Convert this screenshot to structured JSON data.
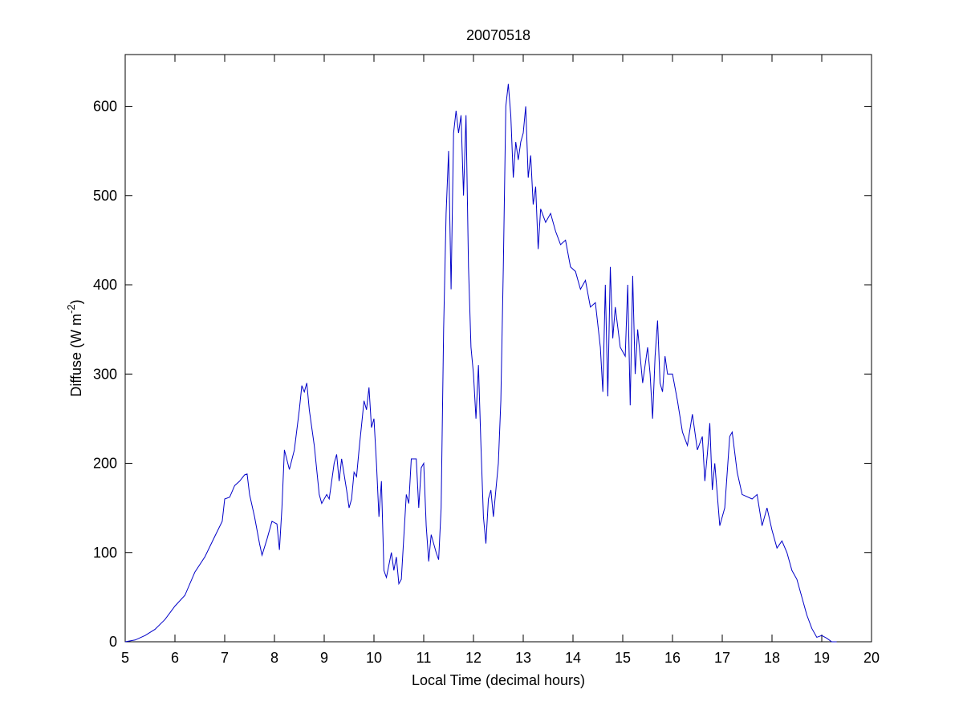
{
  "chart_data": {
    "type": "line",
    "title": "20070518",
    "xlabel": "Local Time (decimal hours)",
    "ylabel": [
      "Diffuse (W m",
      "-2",
      ")"
    ],
    "xlim": [
      5,
      20
    ],
    "xticks": [
      5,
      6,
      7,
      8,
      9,
      10,
      11,
      12,
      13,
      14,
      15,
      16,
      17,
      18,
      19,
      20
    ],
    "ylim": [
      0,
      658
    ],
    "yticks": [
      0,
      100,
      200,
      300,
      400,
      500,
      600
    ],
    "grid": false,
    "series": [
      {
        "color": "#0000c8",
        "x": [
          5.0,
          5.2,
          5.4,
          5.6,
          5.8,
          6.0,
          6.2,
          6.4,
          6.6,
          6.8,
          6.95,
          7.0,
          7.1,
          7.2,
          7.3,
          7.4,
          7.45,
          7.5,
          7.6,
          7.7,
          7.75,
          7.85,
          7.95,
          8.05,
          8.1,
          8.15,
          8.2,
          8.3,
          8.4,
          8.5,
          8.55,
          8.6,
          8.65,
          8.7,
          8.8,
          8.9,
          8.95,
          9.05,
          9.1,
          9.2,
          9.25,
          9.3,
          9.35,
          9.45,
          9.5,
          9.55,
          9.6,
          9.65,
          9.7,
          9.8,
          9.85,
          9.9,
          9.95,
          10.0,
          10.05,
          10.1,
          10.15,
          10.2,
          10.25,
          10.35,
          10.4,
          10.45,
          10.5,
          10.55,
          10.65,
          10.7,
          10.75,
          10.85,
          10.9,
          10.95,
          11.0,
          11.05,
          11.1,
          11.15,
          11.25,
          11.3,
          11.35,
          11.4,
          11.45,
          11.5,
          11.55,
          11.6,
          11.65,
          11.7,
          11.75,
          11.8,
          11.85,
          11.9,
          11.95,
          12.0,
          12.05,
          12.1,
          12.15,
          12.2,
          12.25,
          12.3,
          12.35,
          12.4,
          12.5,
          12.55,
          12.6,
          12.65,
          12.7,
          12.75,
          12.8,
          12.85,
          12.9,
          12.95,
          13.0,
          13.05,
          13.1,
          13.15,
          13.2,
          13.25,
          13.3,
          13.35,
          13.45,
          13.55,
          13.65,
          13.75,
          13.85,
          13.95,
          14.05,
          14.15,
          14.25,
          14.35,
          14.45,
          14.55,
          14.6,
          14.65,
          14.7,
          14.75,
          14.8,
          14.85,
          14.95,
          15.05,
          15.1,
          15.15,
          15.2,
          15.25,
          15.3,
          15.4,
          15.5,
          15.55,
          15.6,
          15.65,
          15.7,
          15.75,
          15.8,
          15.85,
          15.9,
          16.0,
          16.1,
          16.2,
          16.3,
          16.4,
          16.5,
          16.6,
          16.65,
          16.7,
          16.75,
          16.8,
          16.85,
          16.95,
          17.05,
          17.15,
          17.2,
          17.3,
          17.4,
          17.6,
          17.7,
          17.8,
          17.9,
          18.0,
          18.1,
          18.2,
          18.3,
          18.4,
          18.5,
          18.6,
          18.7,
          18.8,
          18.9,
          19.0,
          19.1,
          19.2,
          19.3
        ],
        "values": [
          0,
          2,
          7,
          14,
          25,
          40,
          52,
          78,
          95,
          118,
          135,
          160,
          162,
          175,
          180,
          187,
          188,
          165,
          140,
          110,
          97,
          115,
          135,
          132,
          103,
          150,
          215,
          193,
          215,
          260,
          287,
          280,
          290,
          260,
          220,
          165,
          155,
          165,
          160,
          200,
          210,
          180,
          205,
          170,
          150,
          160,
          190,
          185,
          215,
          270,
          260,
          285,
          240,
          250,
          200,
          140,
          180,
          80,
          72,
          100,
          80,
          95,
          65,
          70,
          165,
          155,
          205,
          205,
          150,
          195,
          200,
          130,
          90,
          120,
          100,
          92,
          150,
          350,
          480,
          550,
          395,
          570,
          595,
          570,
          590,
          500,
          590,
          420,
          330,
          300,
          250,
          310,
          220,
          140,
          110,
          160,
          170,
          140,
          200,
          270,
          420,
          600,
          625,
          590,
          520,
          560,
          540,
          560,
          570,
          600,
          520,
          545,
          490,
          510,
          440,
          485,
          470,
          480,
          460,
          445,
          450,
          420,
          415,
          395,
          405,
          375,
          380,
          330,
          280,
          400,
          275,
          420,
          340,
          375,
          330,
          320,
          400,
          265,
          410,
          300,
          350,
          290,
          330,
          300,
          250,
          320,
          360,
          290,
          280,
          320,
          300,
          300,
          270,
          235,
          220,
          255,
          215,
          230,
          180,
          210,
          245,
          170,
          200,
          130,
          150,
          230,
          235,
          190,
          165,
          160,
          165,
          130,
          150,
          125,
          105,
          113,
          100,
          80,
          70,
          50,
          30,
          15,
          5,
          7,
          4,
          0,
          0
        ]
      }
    ]
  }
}
